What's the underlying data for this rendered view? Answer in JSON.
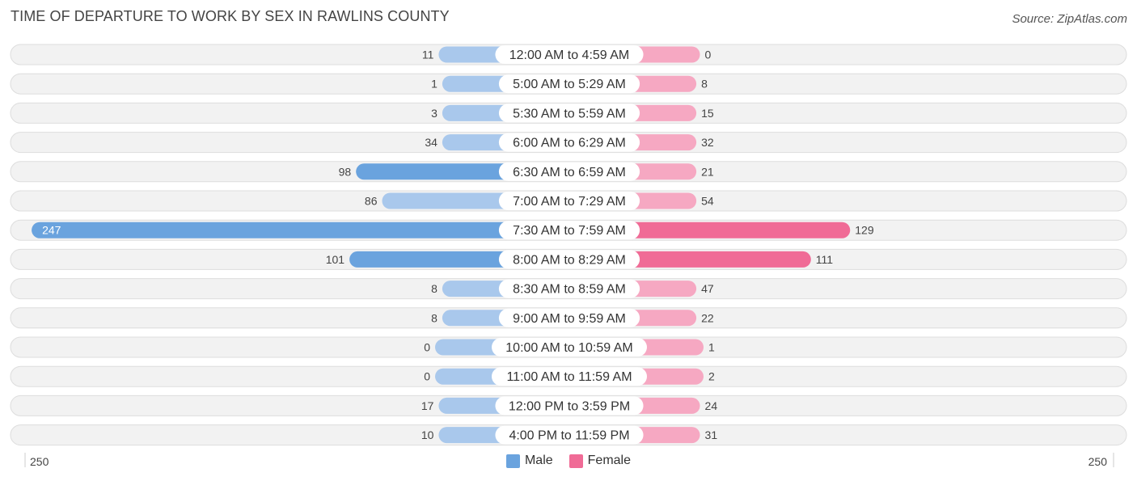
{
  "chart_data": {
    "type": "bar",
    "orientation": "horizontal-diverging",
    "title": "TIME OF DEPARTURE TO WORK BY SEX IN RAWLINS COUNTY",
    "source": "Source: ZipAtlas.com",
    "categories": [
      "12:00 AM to 4:59 AM",
      "5:00 AM to 5:29 AM",
      "5:30 AM to 5:59 AM",
      "6:00 AM to 6:29 AM",
      "6:30 AM to 6:59 AM",
      "7:00 AM to 7:29 AM",
      "7:30 AM to 7:59 AM",
      "8:00 AM to 8:29 AM",
      "8:30 AM to 8:59 AM",
      "9:00 AM to 9:59 AM",
      "10:00 AM to 10:59 AM",
      "11:00 AM to 11:59 AM",
      "12:00 PM to 3:59 PM",
      "4:00 PM to 11:59 PM"
    ],
    "series": [
      {
        "name": "Male",
        "values": [
          11,
          1,
          3,
          34,
          98,
          86,
          247,
          101,
          8,
          8,
          0,
          0,
          17,
          10
        ],
        "color": "#6aa3de",
        "color_light": "#a9c8ec"
      },
      {
        "name": "Female",
        "values": [
          0,
          8,
          15,
          32,
          21,
          54,
          129,
          111,
          47,
          22,
          1,
          2,
          24,
          31
        ],
        "color": "#f06b96",
        "color_light": "#f6a8c2"
      }
    ],
    "axis": {
      "min_label": "250",
      "max_label": "250",
      "max": 250
    }
  }
}
